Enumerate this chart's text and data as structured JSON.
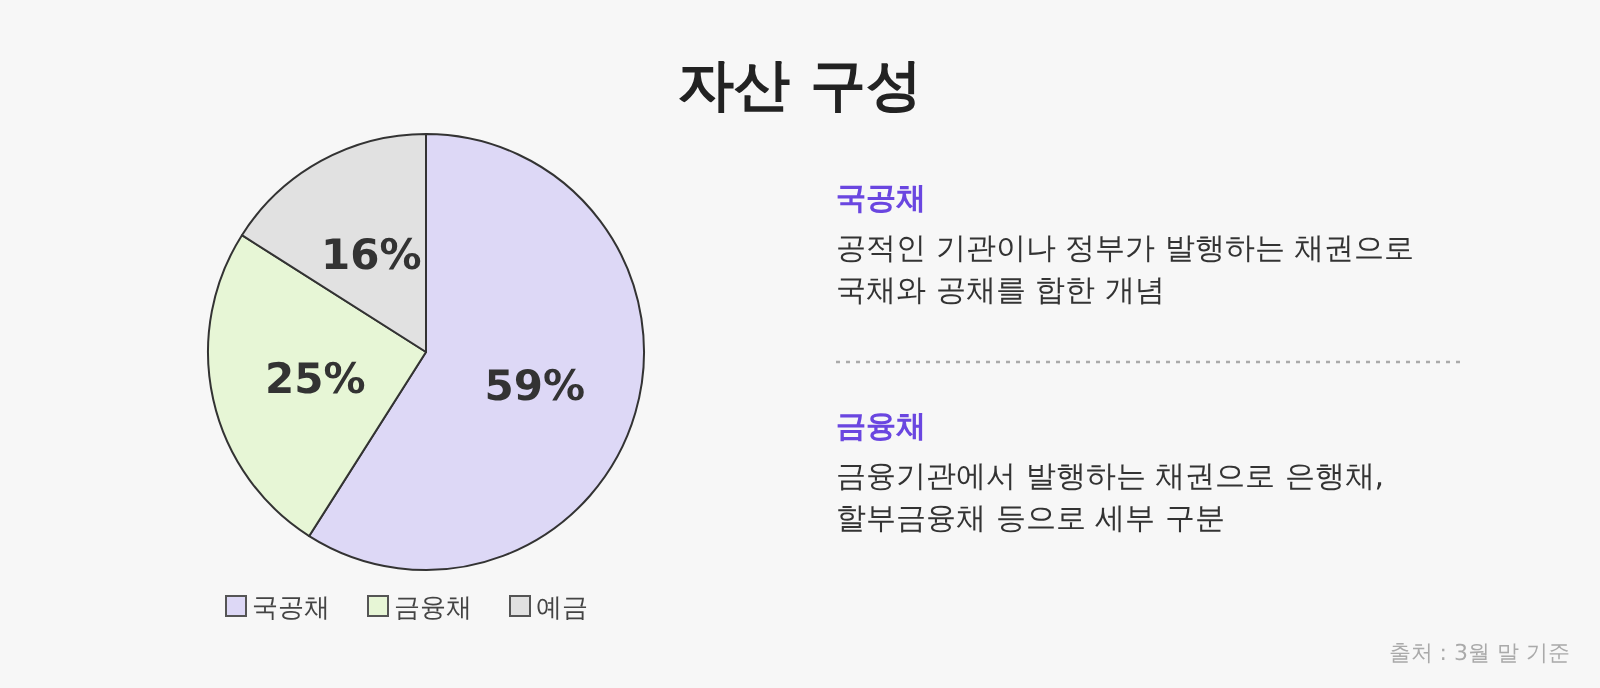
{
  "chart_data": {
    "type": "pie",
    "title": "자산 구성",
    "categories": [
      "국공채",
      "금융채",
      "예금"
    ],
    "values": [
      59,
      25,
      16
    ],
    "colors": [
      "#ddd8f6",
      "#e7f6d6",
      "#e1e1e1"
    ],
    "value_labels": [
      "59%",
      "25%",
      "16%"
    ],
    "legend": "bottom",
    "annotations": [
      "국공채",
      "공적인 기관이나 정부가 발행하는 채권으로",
      "국채와 공채를 합한 개념",
      "금융채",
      "금융기관에서 발행하는 채권으로 은행채,",
      "할부금융채 등으로 세부 구분",
      "출처 : 3월 말 기준"
    ]
  }
}
